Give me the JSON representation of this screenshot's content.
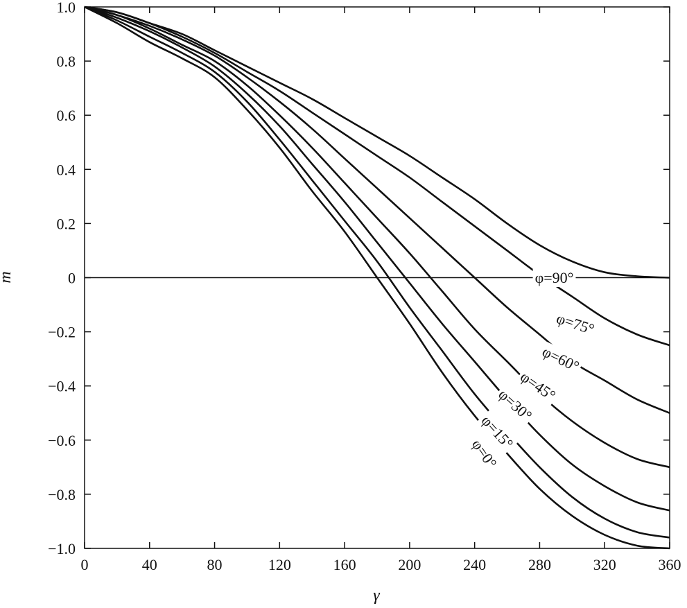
{
  "chart_data": {
    "type": "line",
    "title": "",
    "xlabel": "γ",
    "ylabel": "m",
    "xlim": [
      0,
      360
    ],
    "ylim": [
      -1.0,
      1.0
    ],
    "x_ticks": [
      "0",
      "40",
      "80",
      "120",
      "160",
      "200",
      "240",
      "280",
      "320",
      "360"
    ],
    "y_ticks": [
      "1.0",
      "0.8",
      "0.6",
      "0.4",
      "0.2",
      "0",
      "−0.2",
      "−0.4",
      "−0.6",
      "−0.8",
      "−1.0"
    ],
    "zero_line": true,
    "grid": false,
    "line_color": "#111111",
    "series": [
      {
        "label": "φ=0°",
        "x": [
          0,
          20,
          40,
          60,
          80,
          100,
          120,
          140,
          160,
          180,
          200,
          220,
          240,
          260,
          280,
          300,
          320,
          340,
          360
        ],
        "y": [
          1.0,
          0.94,
          0.87,
          0.81,
          0.74,
          0.62,
          0.48,
          0.32,
          0.17,
          0.0,
          -0.17,
          -0.35,
          -0.51,
          -0.65,
          -0.78,
          -0.88,
          -0.95,
          -0.99,
          -1.0
        ]
      },
      {
        "label": "φ=15°",
        "x": [
          0,
          20,
          40,
          60,
          80,
          100,
          120,
          140,
          160,
          180,
          200,
          220,
          240,
          260,
          280,
          300,
          320,
          340,
          360
        ],
        "y": [
          1.0,
          0.95,
          0.89,
          0.83,
          0.76,
          0.65,
          0.51,
          0.36,
          0.21,
          0.06,
          -0.11,
          -0.27,
          -0.43,
          -0.57,
          -0.7,
          -0.81,
          -0.89,
          -0.94,
          -0.96
        ]
      },
      {
        "label": "φ=30°",
        "x": [
          0,
          20,
          40,
          60,
          80,
          100,
          120,
          140,
          160,
          180,
          200,
          220,
          240,
          260,
          280,
          300,
          320,
          340,
          360
        ],
        "y": [
          1.0,
          0.96,
          0.91,
          0.85,
          0.78,
          0.68,
          0.56,
          0.42,
          0.28,
          0.13,
          -0.02,
          -0.17,
          -0.31,
          -0.45,
          -0.58,
          -0.69,
          -0.77,
          -0.83,
          -0.86
        ]
      },
      {
        "label": "φ=45°",
        "x": [
          0,
          20,
          40,
          60,
          80,
          100,
          120,
          140,
          160,
          180,
          200,
          220,
          240,
          260,
          280,
          300,
          320,
          340,
          360
        ],
        "y": [
          1.0,
          0.97,
          0.92,
          0.86,
          0.8,
          0.71,
          0.6,
          0.48,
          0.35,
          0.22,
          0.09,
          -0.05,
          -0.19,
          -0.31,
          -0.43,
          -0.53,
          -0.61,
          -0.67,
          -0.7
        ]
      },
      {
        "label": "φ=60°",
        "x": [
          0,
          20,
          40,
          60,
          80,
          100,
          120,
          140,
          160,
          180,
          200,
          220,
          240,
          260,
          280,
          300,
          320,
          340,
          360
        ],
        "y": [
          1.0,
          0.97,
          0.93,
          0.88,
          0.82,
          0.74,
          0.65,
          0.55,
          0.44,
          0.33,
          0.22,
          0.11,
          0.0,
          -0.11,
          -0.21,
          -0.31,
          -0.38,
          -0.45,
          -0.5
        ]
      },
      {
        "label": "φ=75°",
        "x": [
          0,
          20,
          40,
          60,
          80,
          100,
          120,
          140,
          160,
          180,
          200,
          220,
          240,
          260,
          280,
          300,
          320,
          340,
          360
        ],
        "y": [
          1.0,
          0.98,
          0.94,
          0.89,
          0.83,
          0.76,
          0.69,
          0.61,
          0.53,
          0.45,
          0.37,
          0.28,
          0.19,
          0.1,
          0.01,
          -0.07,
          -0.15,
          -0.21,
          -0.25
        ]
      },
      {
        "label": "φ=90°",
        "x": [
          0,
          20,
          40,
          60,
          80,
          100,
          120,
          140,
          160,
          180,
          200,
          220,
          240,
          260,
          280,
          300,
          320,
          340,
          360
        ],
        "y": [
          1.0,
          0.98,
          0.94,
          0.9,
          0.84,
          0.78,
          0.72,
          0.66,
          0.59,
          0.52,
          0.45,
          0.37,
          0.29,
          0.2,
          0.12,
          0.06,
          0.02,
          0.005,
          0.0
        ]
      }
    ],
    "annotations": [
      {
        "text": "φ=90°",
        "x": 289,
        "y": 0.0,
        "angle": 0
      },
      {
        "text": "φ=75°",
        "x": 302,
        "y": -0.17,
        "angle": 18
      },
      {
        "text": "φ=60°",
        "x": 293,
        "y": -0.3,
        "angle": 26
      },
      {
        "text": "φ=45°",
        "x": 279,
        "y": -0.4,
        "angle": 35
      },
      {
        "text": "φ=30°",
        "x": 265,
        "y": -0.47,
        "angle": 42
      },
      {
        "text": "φ=15°",
        "x": 254,
        "y": -0.57,
        "angle": 48
      },
      {
        "text": "φ=0°",
        "x": 246,
        "y": -0.65,
        "angle": 55
      }
    ]
  }
}
